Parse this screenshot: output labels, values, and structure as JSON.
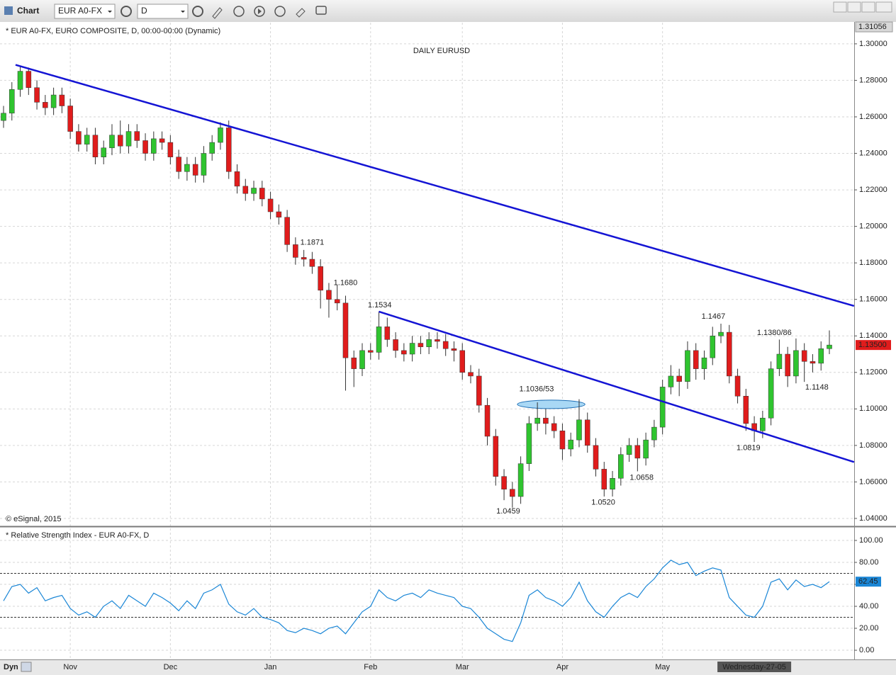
{
  "toolbar": {
    "title": "Chart",
    "symbol": "EUR A0-FX",
    "interval": "D"
  },
  "footer": {
    "mode": "Dyn"
  },
  "chart_data": [
    {
      "type": "candlestick",
      "title": "DAILY EURUSD",
      "header": "* EUR A0-FX, EURO COMPOSITE, D, 00:00-00:00 (Dynamic)",
      "copyright": "© eSignal, 2015",
      "top_label": "1.31056",
      "last_label": "1.13500",
      "up_color": "#2fc42f",
      "down_color": "#e01c1c",
      "ylim": [
        1.0361,
        1.3116
      ],
      "yticks": [
        {
          "value": 1.04,
          "label": "1.04000"
        },
        {
          "value": 1.06,
          "label": "1.06000"
        },
        {
          "value": 1.08,
          "label": "1.08000"
        },
        {
          "value": 1.1,
          "label": "1.10000"
        },
        {
          "value": 1.12,
          "label": "1.12000"
        },
        {
          "value": 1.14,
          "label": "1.14000"
        },
        {
          "value": 1.16,
          "label": "1.16000"
        },
        {
          "value": 1.18,
          "label": "1.18000"
        },
        {
          "value": 1.2,
          "label": "1.20000"
        },
        {
          "value": 1.22,
          "label": "1.22000"
        },
        {
          "value": 1.24,
          "label": "1.24000"
        },
        {
          "value": 1.26,
          "label": "1.26000"
        },
        {
          "value": 1.28,
          "label": "1.28000"
        },
        {
          "value": 1.3,
          "label": "1.30000"
        }
      ],
      "grid": true,
      "categories": [
        null,
        null,
        null,
        null,
        null,
        null,
        null,
        null,
        "Nov",
        null,
        null,
        null,
        null,
        null,
        null,
        null,
        null,
        null,
        null,
        null,
        "Dec",
        null,
        null,
        null,
        null,
        null,
        null,
        null,
        null,
        null,
        null,
        null,
        "Jan",
        null,
        null,
        null,
        null,
        null,
        null,
        null,
        null,
        null,
        null,
        null,
        "Feb",
        null,
        null,
        null,
        null,
        null,
        null,
        null,
        null,
        null,
        null,
        "Mar",
        null,
        null,
        null,
        null,
        null,
        null,
        null,
        null,
        null,
        null,
        null,
        "Apr",
        null,
        null,
        null,
        null,
        null,
        null,
        null,
        null,
        null,
        null,
        null,
        "May",
        null,
        null,
        null,
        null,
        null,
        null,
        null,
        null,
        null,
        null,
        null,
        null,
        null,
        null,
        null,
        null,
        null,
        null,
        null,
        null
      ],
      "cursor": {
        "label": "Wednesday-27-05",
        "x": 90
      },
      "open": [
        1.258,
        1.262,
        1.275,
        1.285,
        1.276,
        1.268,
        1.265,
        1.272,
        1.266,
        1.252,
        1.245,
        1.25,
        1.238,
        1.243,
        1.25,
        1.244,
        1.252,
        1.247,
        1.24,
        1.248,
        1.246,
        1.238,
        1.23,
        1.234,
        1.228,
        1.24,
        1.246,
        1.254,
        1.23,
        1.222,
        1.218,
        1.221,
        1.215,
        1.208,
        1.205,
        1.19,
        1.183,
        1.182,
        1.178,
        1.165,
        1.16,
        1.158,
        1.128,
        1.122,
        1.132,
        1.131,
        1.145,
        1.138,
        1.132,
        1.13,
        1.136,
        1.134,
        1.138,
        1.137,
        1.133,
        1.132,
        1.12,
        1.118,
        1.102,
        1.085,
        1.063,
        1.056,
        1.052,
        1.07,
        1.092,
        1.095,
        1.092,
        1.088,
        1.078,
        1.083,
        1.094,
        1.08,
        1.067,
        1.056,
        1.062,
        1.075,
        1.08,
        1.073,
        1.083,
        1.09,
        1.112,
        1.118,
        1.115,
        1.132,
        1.122,
        1.128,
        1.14,
        1.142,
        1.118,
        1.107,
        1.092,
        1.088,
        1.095,
        1.122,
        1.13,
        1.118,
        1.132,
        1.126,
        1.125,
        1.133
      ],
      "high": [
        1.266,
        1.279,
        1.288,
        1.287,
        1.28,
        1.272,
        1.276,
        1.276,
        1.27,
        1.256,
        1.254,
        1.254,
        1.247,
        1.256,
        1.258,
        1.256,
        1.256,
        1.251,
        1.252,
        1.252,
        1.25,
        1.242,
        1.238,
        1.238,
        1.244,
        1.25,
        1.257,
        1.258,
        1.234,
        1.226,
        1.225,
        1.225,
        1.219,
        1.212,
        1.209,
        1.194,
        1.1871,
        1.186,
        1.182,
        1.169,
        1.168,
        1.162,
        1.132,
        1.136,
        1.136,
        1.1534,
        1.15,
        1.142,
        1.136,
        1.14,
        1.14,
        1.142,
        1.142,
        1.141,
        1.137,
        1.136,
        1.124,
        1.122,
        1.106,
        1.089,
        1.067,
        1.06,
        1.074,
        1.096,
        1.1036,
        1.1,
        1.096,
        1.092,
        1.087,
        1.1053,
        1.098,
        1.084,
        1.071,
        1.066,
        1.079,
        1.084,
        1.084,
        1.087,
        1.094,
        1.116,
        1.124,
        1.122,
        1.137,
        1.136,
        1.132,
        1.145,
        1.1467,
        1.146,
        1.122,
        1.111,
        1.096,
        1.099,
        1.126,
        1.138,
        1.134,
        1.1386,
        1.136,
        1.13,
        1.137,
        1.143
      ],
      "low": [
        1.254,
        1.258,
        1.271,
        1.272,
        1.264,
        1.261,
        1.261,
        1.262,
        1.248,
        1.241,
        1.241,
        1.234,
        1.234,
        1.239,
        1.24,
        1.24,
        1.243,
        1.236,
        1.236,
        1.242,
        1.234,
        1.226,
        1.225,
        1.224,
        1.224,
        1.236,
        1.242,
        1.226,
        1.218,
        1.214,
        1.214,
        1.211,
        1.204,
        1.201,
        1.186,
        1.179,
        1.178,
        1.174,
        1.155,
        1.15,
        1.154,
        1.11,
        1.112,
        1.118,
        1.127,
        1.127,
        1.134,
        1.128,
        1.126,
        1.126,
        1.13,
        1.13,
        1.133,
        1.129,
        1.126,
        1.116,
        1.114,
        1.098,
        1.08,
        1.058,
        1.05,
        1.0459,
        1.048,
        1.066,
        1.088,
        1.086,
        1.084,
        1.072,
        1.074,
        1.079,
        1.076,
        1.063,
        1.052,
        1.052,
        1.058,
        1.071,
        1.0658,
        1.069,
        1.079,
        1.086,
        1.108,
        1.107,
        1.111,
        1.116,
        1.116,
        1.124,
        1.136,
        1.114,
        1.103,
        1.088,
        1.0819,
        1.084,
        1.091,
        1.118,
        1.112,
        1.114,
        1.1148,
        1.12,
        1.121,
        1.13
      ],
      "close": [
        1.262,
        1.275,
        1.285,
        1.276,
        1.268,
        1.265,
        1.272,
        1.266,
        1.252,
        1.245,
        1.25,
        1.238,
        1.243,
        1.25,
        1.244,
        1.252,
        1.247,
        1.24,
        1.248,
        1.246,
        1.238,
        1.23,
        1.234,
        1.228,
        1.24,
        1.246,
        1.254,
        1.23,
        1.222,
        1.218,
        1.221,
        1.215,
        1.208,
        1.205,
        1.19,
        1.183,
        1.182,
        1.178,
        1.165,
        1.16,
        1.158,
        1.128,
        1.122,
        1.132,
        1.131,
        1.145,
        1.138,
        1.132,
        1.13,
        1.136,
        1.134,
        1.138,
        1.137,
        1.133,
        1.132,
        1.12,
        1.118,
        1.102,
        1.085,
        1.063,
        1.056,
        1.052,
        1.07,
        1.092,
        1.095,
        1.092,
        1.088,
        1.078,
        1.083,
        1.094,
        1.08,
        1.067,
        1.056,
        1.062,
        1.075,
        1.08,
        1.073,
        1.083,
        1.09,
        1.112,
        1.118,
        1.115,
        1.132,
        1.122,
        1.128,
        1.14,
        1.142,
        1.118,
        1.107,
        1.092,
        1.088,
        1.095,
        1.122,
        1.13,
        1.118,
        1.132,
        1.126,
        1.125,
        1.133,
        1.135
      ],
      "trendlines": [
        {
          "color": "#1414d4",
          "x": [
            1.44,
            101.96
          ],
          "y": [
            1.2885,
            1.1564
          ]
        },
        {
          "color": "#1414d4",
          "x": [
            45.0,
            101.96
          ],
          "y": [
            1.1533,
            1.0709
          ]
        }
      ],
      "highlight": {
        "color": "#a9d8f5",
        "x": [
          61.6,
          69.7
        ],
        "y": 1.1025
      },
      "annotations": [
        {
          "text": "1.1871",
          "x": 37,
          "y": 1.191
        },
        {
          "text": "1.1680",
          "x": 41,
          "y": 1.1689
        },
        {
          "text": "1.1534",
          "x": 45.1,
          "y": 1.1568
        },
        {
          "text": "1.1036/53",
          "x": 63.9,
          "y": 1.1107
        },
        {
          "text": "1.0459",
          "x": 60.5,
          "y": 1.0439
        },
        {
          "text": "1.0520",
          "x": 71.9,
          "y": 1.0486
        },
        {
          "text": "1.0658",
          "x": 76.5,
          "y": 1.0622
        },
        {
          "text": "1.1467",
          "x": 85.1,
          "y": 1.1506
        },
        {
          "text": "1.1380/86",
          "x": 92.4,
          "y": 1.1417
        },
        {
          "text": "1.1148",
          "x": 97.5,
          "y": 1.1118
        },
        {
          "text": "1.0819",
          "x": 89.3,
          "y": 1.0785
        }
      ],
      "annotation_color": "#e01010"
    },
    {
      "type": "line",
      "title": "* Relative Strength Index - EUR A0-FX, D",
      "color": "#1a86d6",
      "ylim": [
        -7.7,
        111.6
      ],
      "yticks": [
        {
          "value": 0,
          "label": "0.00"
        },
        {
          "value": 20,
          "label": "20.00"
        },
        {
          "value": 40,
          "label": "40.00"
        },
        {
          "value": 60,
          "label": "60.00"
        },
        {
          "value": 80,
          "label": "80.00"
        },
        {
          "value": 100,
          "label": "100.00"
        }
      ],
      "levels": [
        70,
        30
      ],
      "values": [
        45,
        58,
        60,
        52,
        57,
        45,
        48,
        50,
        38,
        32,
        35,
        30,
        40,
        45,
        38,
        50,
        45,
        40,
        52,
        48,
        43,
        36,
        45,
        38,
        52,
        55,
        60,
        42,
        35,
        32,
        38,
        30,
        28,
        25,
        18,
        16,
        20,
        18,
        15,
        20,
        22,
        15,
        25,
        35,
        40,
        55,
        48,
        45,
        50,
        52,
        48,
        55,
        52,
        50,
        48,
        40,
        38,
        30,
        20,
        15,
        10,
        8,
        25,
        50,
        55,
        48,
        45,
        40,
        48,
        62,
        45,
        35,
        30,
        40,
        48,
        52,
        48,
        58,
        65,
        75,
        82,
        78,
        80,
        68,
        72,
        75,
        73,
        48,
        40,
        32,
        30,
        40,
        62,
        65,
        55,
        64,
        58,
        60,
        57,
        62.45
      ]
    }
  ]
}
